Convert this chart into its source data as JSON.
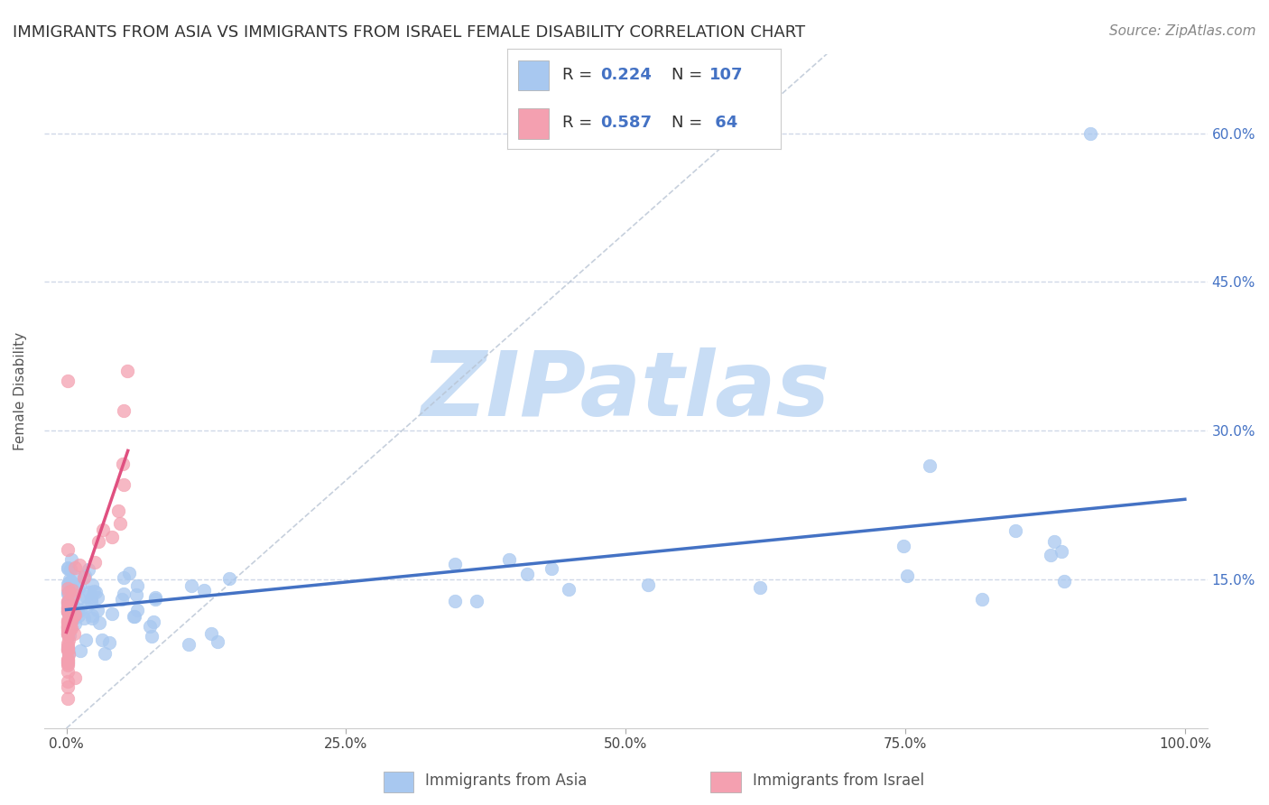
{
  "title": "IMMIGRANTS FROM ASIA VS IMMIGRANTS FROM ISRAEL FEMALE DISABILITY CORRELATION CHART",
  "source": "Source: ZipAtlas.com",
  "ylabel": "Female Disability",
  "color_asia": "#a8c8f0",
  "color_israel": "#f4a0b0",
  "color_line_asia": "#4472c4",
  "color_line_israel": "#e05080",
  "watermark": "ZIPatlas",
  "watermark_color": "#c8ddf5",
  "background_color": "#ffffff",
  "grid_color": "#d0d8e8",
  "R_asia": 0.224,
  "N_asia": 107,
  "R_israel": 0.587,
  "N_israel": 64
}
